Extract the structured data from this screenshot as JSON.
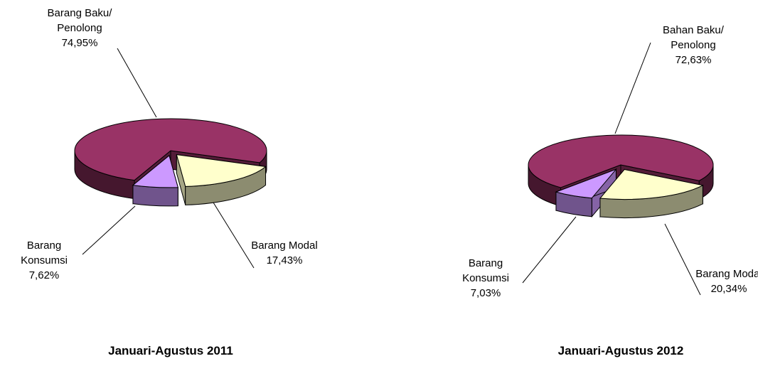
{
  "chart_data": [
    {
      "type": "pie",
      "title": "Januari-Agustus 2011",
      "categories": [
        "Barang Baku/ Penolong",
        "Barang Modal",
        "Barang Konsumsi"
      ],
      "values": [
        74.95,
        17.43,
        7.62
      ],
      "value_labels": [
        "74,95%",
        "17,43%",
        "7,62%"
      ],
      "colors": [
        "#993366",
        "#ffffcc",
        "#cc99ff"
      ]
    },
    {
      "type": "pie",
      "title": "Januari-Agustus 2012",
      "categories": [
        "Bahan Baku/ Penolong",
        "Barang Modal",
        "Barang Konsumsi"
      ],
      "values": [
        72.63,
        20.34,
        7.03
      ],
      "value_labels": [
        "72,63%",
        "20,34%",
        "7,03%"
      ],
      "colors": [
        "#993366",
        "#ffffcc",
        "#cc99ff"
      ]
    }
  ]
}
